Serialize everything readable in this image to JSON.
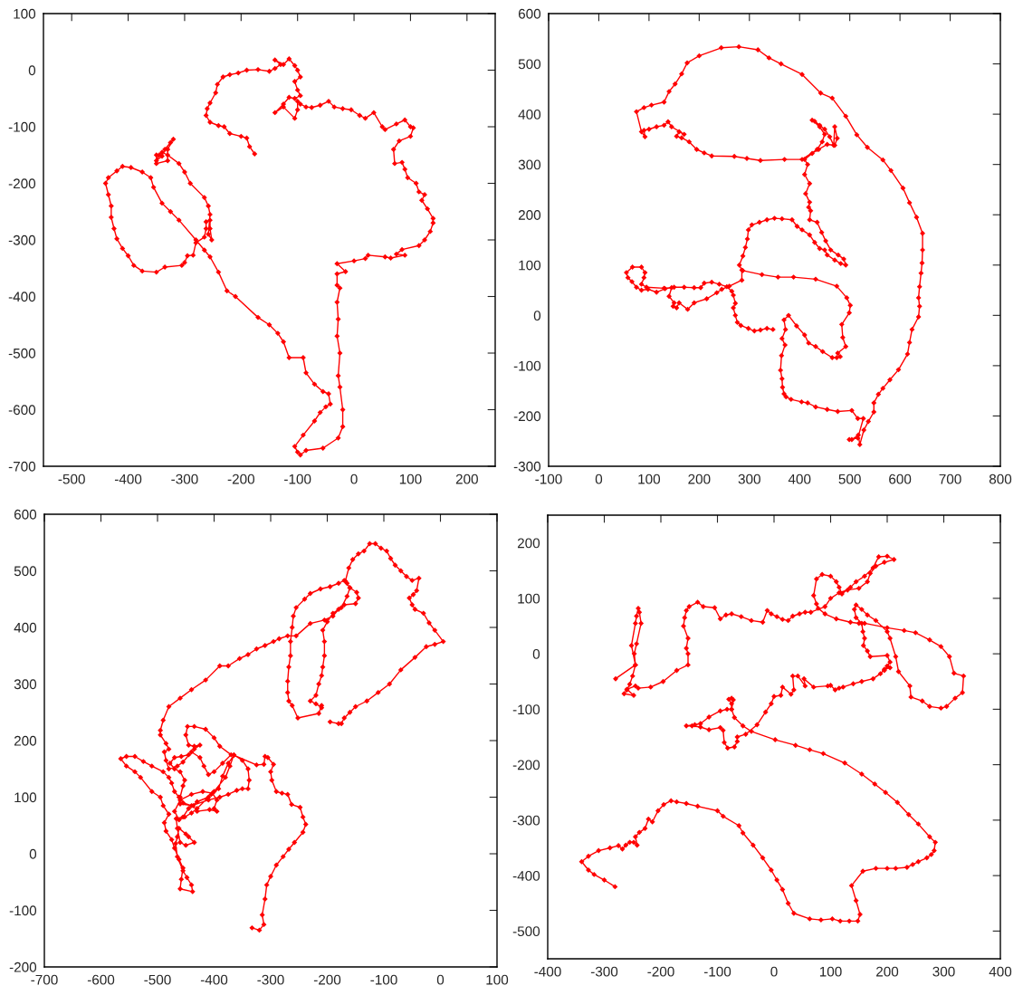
{
  "chart_data": [
    {
      "type": "line",
      "marker": "diamond",
      "grid": false,
      "xlim": [
        -550,
        250
      ],
      "ylim": [
        -700,
        100
      ],
      "xticks": [
        -500,
        -400,
        -300,
        -200,
        -100,
        0,
        100,
        200
      ],
      "yticks": [
        -700,
        -600,
        -500,
        -400,
        -300,
        -200,
        -100,
        0,
        100
      ],
      "series": [
        {
          "color": "#ff0000",
          "x": [
            -176,
            -185,
            -190,
            -200,
            -220,
            -230,
            -240,
            -255,
            -262,
            -260,
            -255,
            -245,
            -242,
            -232,
            -220,
            -205,
            -190,
            -170,
            -150,
            -140,
            -130,
            -140,
            -125,
            -115,
            -105,
            -100,
            -95,
            -105,
            -100,
            -95,
            -105,
            -115,
            -125,
            -140,
            -125,
            -105,
            -100,
            -100,
            -95,
            -85,
            -75,
            -60,
            -45,
            -35,
            -20,
            -5,
            10,
            20,
            35,
            50,
            55,
            75,
            90,
            100,
            105,
            100,
            80,
            70,
            72,
            85,
            90,
            95,
            110,
            115,
            125,
            120,
            130,
            140,
            140,
            135,
            125,
            115,
            85,
            75,
            90,
            65,
            55,
            25,
            20,
            0,
            -30,
            -15,
            -30,
            -30,
            -25,
            -30,
            -28,
            -30,
            -25,
            -28,
            -25,
            -20,
            -20,
            -28,
            -55,
            -85,
            -95,
            -100,
            -105,
            -90,
            -70,
            -60,
            -50,
            -42,
            -45,
            -55,
            -70,
            -85,
            -90,
            -115,
            -125,
            -135,
            -150,
            -170,
            -210,
            -225,
            -240,
            -255,
            -265,
            -280,
            -310,
            -325,
            -340,
            -355,
            -360,
            -375,
            -395,
            -410,
            -420,
            -435,
            -440,
            -435,
            -430,
            -430,
            -425,
            -420,
            -410,
            -400,
            -390,
            -375,
            -350,
            -335,
            -305,
            -300,
            -295,
            -285,
            -280,
            -265,
            -262,
            -262,
            -255,
            -255,
            -252,
            -258,
            -255,
            -258,
            -265,
            -290,
            -300,
            -310,
            -330,
            -340,
            -345,
            -350,
            -340,
            -335,
            -325,
            -320,
            -330,
            -330,
            -350,
            -350
          ],
          "values": [
            -148,
            -135,
            -120,
            -117,
            -112,
            -100,
            -98,
            -92,
            -80,
            -68,
            -58,
            -40,
            -25,
            -12,
            -8,
            -5,
            0,
            1,
            -2,
            3,
            10,
            18,
            10,
            20,
            8,
            0,
            -12,
            -20,
            -35,
            -45,
            -50,
            -48,
            -60,
            -75,
            -65,
            -85,
            -70,
            -55,
            -60,
            -65,
            -66,
            -62,
            -55,
            -65,
            -68,
            -70,
            -80,
            -85,
            -75,
            -100,
            -105,
            -95,
            -88,
            -100,
            -102,
            -117,
            -125,
            -140,
            -165,
            -163,
            -175,
            -190,
            -200,
            -215,
            -220,
            -230,
            -245,
            -262,
            -270,
            -285,
            -300,
            -310,
            -317,
            -325,
            -327,
            -332,
            -330,
            -327,
            -333,
            -337,
            -342,
            -356,
            -360,
            -380,
            -385,
            -410,
            -440,
            -470,
            -500,
            -540,
            -560,
            -600,
            -630,
            -650,
            -668,
            -672,
            -680,
            -675,
            -665,
            -645,
            -620,
            -605,
            -595,
            -590,
            -572,
            -568,
            -555,
            -535,
            -508,
            -508,
            -480,
            -465,
            -450,
            -437,
            -400,
            -390,
            -357,
            -330,
            -318,
            -300,
            -265,
            -250,
            -235,
            -207,
            -190,
            -180,
            -172,
            -170,
            -178,
            -190,
            -200,
            -220,
            -240,
            -260,
            -280,
            -298,
            -315,
            -328,
            -345,
            -355,
            -357,
            -348,
            -345,
            -340,
            -328,
            -327,
            -305,
            -295,
            -280,
            -268,
            -265,
            -280,
            -300,
            -290,
            -255,
            -240,
            -225,
            -200,
            -180,
            -165,
            -150,
            -145,
            -150,
            -160,
            -152,
            -140,
            -128,
            -122,
            -140,
            -160,
            -165,
            -150
          ]
        }
      ]
    },
    {
      "type": "line",
      "marker": "diamond",
      "grid": false,
      "xlim": [
        -100,
        800
      ],
      "ylim": [
        -300,
        600
      ],
      "xticks": [
        -100,
        0,
        100,
        200,
        300,
        400,
        500,
        600,
        700,
        800
      ],
      "yticks": [
        -300,
        -200,
        -100,
        0,
        100,
        200,
        300,
        400,
        500,
        600
      ],
      "series": [
        {
          "color": "#ff0000",
          "x": [
            347,
            335,
            322,
            310,
            298,
            283,
            276,
            272,
            268,
            272,
            268,
            265,
            255,
            240,
            225,
            210,
            203,
            190,
            170,
            150,
            132,
            115,
            98,
            85,
            75,
            66,
            58,
            55,
            67,
            85,
            92,
            90,
            85,
            95,
            130,
            145,
            140,
            150,
            148,
            155,
            160,
            177,
            190,
            215,
            235,
            245,
            260,
            285,
            285,
            280,
            287,
            292,
            296,
            298,
            305,
            320,
            335,
            350,
            365,
            385,
            395,
            405,
            420,
            430,
            440,
            450,
            455,
            470,
            482,
            492,
            488,
            477,
            462,
            452,
            444,
            435,
            420,
            422,
            418,
            420,
            412,
            420,
            410,
            416,
            410,
            425,
            438,
            455,
            470,
            475,
            470,
            468,
            460,
            450,
            440,
            430,
            425,
            440,
            450,
            445,
            435,
            405,
            370,
            322,
            295,
            270,
            225,
            210,
            195,
            180,
            165,
            155,
            160,
            170,
            145,
            138,
            130,
            115,
            100,
            90,
            92,
            85,
            75,
            90,
            105,
            130,
            140,
            152,
            165,
            176,
            200,
            244,
            279,
            317,
            339,
            363,
            405,
            442,
            465,
            492,
            514,
            535,
            566,
            582,
            606,
            619,
            633,
            645,
            645,
            644,
            642,
            639,
            637,
            639,
            637,
            624,
            619,
            615,
            597,
            580,
            566,
            557,
            548,
            548,
            537,
            528,
            520,
            517,
            504,
            499,
            516,
            527,
            516,
            504,
            476,
            455,
            432,
            416,
            404,
            383,
            373,
            369,
            366,
            365,
            362,
            364,
            371,
            365,
            372,
            369,
            378,
            394,
            410,
            418,
            432,
            446,
            465,
            474,
            481,
            476,
            492,
            486,
            484,
            499,
            501,
            494,
            474,
            432,
            388,
            357,
            325,
            287
          ],
          "values": [
            -28,
            -26,
            -29,
            -31,
            -26,
            -20,
            -14,
            0,
            15,
            24,
            40,
            48,
            57,
            62,
            66,
            64,
            55,
            55,
            56,
            56,
            53,
            46,
            52,
            50,
            56,
            67,
            75,
            85,
            96,
            96,
            85,
            75,
            62,
            56,
            54,
            55,
            38,
            25,
            18,
            15,
            25,
            12,
            25,
            33,
            45,
            52,
            58,
            70,
            90,
            100,
            118,
            135,
            152,
            170,
            180,
            185,
            190,
            193,
            192,
            190,
            177,
            170,
            160,
            145,
            133,
            130,
            120,
            110,
            103,
            100,
            112,
            120,
            130,
            148,
            165,
            185,
            190,
            208,
            215,
            225,
            242,
            262,
            280,
            300,
            310,
            322,
            330,
            340,
            338,
            352,
            375,
            338,
            355,
            370,
            378,
            386,
            388,
            375,
            360,
            345,
            330,
            310,
            310,
            308,
            312,
            316,
            317,
            323,
            330,
            345,
            353,
            356,
            365,
            360,
            375,
            385,
            378,
            375,
            370,
            368,
            355,
            365,
            405,
            413,
            418,
            424,
            445,
            460,
            480,
            502,
            516,
            532,
            534,
            528,
            512,
            500,
            479,
            442,
            432,
            396,
            359,
            334,
            309,
            288,
            253,
            224,
            195,
            163,
            130,
            104,
            84,
            57,
            35,
            18,
            -3,
            -28,
            -54,
            -77,
            -108,
            -128,
            -145,
            -157,
            -174,
            -192,
            -211,
            -228,
            -257,
            -238,
            -247,
            -247,
            -244,
            -205,
            -205,
            -189,
            -191,
            -187,
            -182,
            -174,
            -172,
            -167,
            -162,
            -156,
            -143,
            -126,
            -109,
            -80,
            -59,
            -46,
            -28,
            -9,
            0,
            -21,
            -39,
            -55,
            -62,
            -72,
            -84,
            -84,
            -82,
            -75,
            -62,
            -44,
            -18,
            5,
            20,
            35,
            58,
            72,
            76,
            76,
            81,
            89
          ]
        }
      ]
    },
    {
      "type": "line",
      "marker": "diamond",
      "grid": false,
      "xlim": [
        -700,
        100
      ],
      "ylim": [
        -200,
        600
      ],
      "xticks": [
        -700,
        -600,
        -500,
        -400,
        -300,
        -200,
        -100,
        0,
        100
      ],
      "yticks": [
        -200,
        -100,
        0,
        100,
        200,
        300,
        400,
        500,
        600
      ],
      "series": [
        {
          "color": "#ff0000",
          "x": [
            -333,
            -320,
            -312,
            -315,
            -310,
            -307,
            -300,
            -290,
            -278,
            -268,
            -258,
            -243,
            -238,
            -243,
            -248,
            -263,
            -270,
            -280,
            -290,
            -298,
            -300,
            -295,
            -305,
            -310,
            -312,
            -325,
            -365,
            -375,
            -385,
            -392,
            -405,
            -430,
            -440,
            -452,
            -462,
            -470,
            -460,
            -440,
            -420,
            -403,
            -395,
            -400,
            -395,
            -408,
            -430,
            -437,
            -460,
            -462,
            -470,
            -475,
            -480,
            -490,
            -510,
            -525,
            -540,
            -555,
            -565,
            -555,
            -540,
            -530,
            -510,
            -495,
            -490,
            -480,
            -488,
            -485,
            -475,
            -470,
            -462,
            -455,
            -458,
            -460,
            -438,
            -440,
            -448,
            -455,
            -465,
            -468,
            -465,
            -462,
            -450,
            -445,
            -435,
            -450,
            -460,
            -465,
            -467,
            -455,
            -445,
            -430,
            -410,
            -400,
            -380,
            -372,
            -365,
            -350,
            -340,
            -338,
            -340,
            -350,
            -360,
            -375,
            -390,
            -410,
            -440,
            -455,
            -460,
            -455,
            -452,
            -460,
            -470,
            -478,
            -470,
            -458,
            -445,
            -435,
            -425,
            -435,
            -445,
            -450,
            -447,
            -435,
            -415,
            -400,
            -390,
            -370,
            -385,
            -400,
            -410,
            -418,
            -425,
            -440,
            -455,
            -465,
            -480,
            -485,
            -488,
            -480,
            -485,
            -495,
            -495,
            -490,
            -480,
            -460,
            -440,
            -415,
            -390,
            -375,
            -355,
            -340,
            -325,
            -310,
            -295,
            -285,
            -270,
            -255,
            -230,
            -205,
            -190,
            -180,
            -170,
            -150,
            -145,
            -148,
            -160,
            -165,
            -170,
            -180,
            -195,
            -212,
            -230,
            -240,
            -255,
            -260,
            -262,
            -265,
            -265,
            -268,
            -270,
            -270,
            -268,
            -262,
            -252,
            -215,
            -210,
            -210,
            -220,
            -230,
            -220,
            -215,
            -210,
            -208,
            -205,
            -205,
            -208,
            -200,
            -190,
            -175,
            -165,
            -160,
            -168,
            -162,
            -155,
            -145,
            -135,
            -125,
            -115,
            -105,
            -95,
            -88,
            -80,
            -70,
            -60,
            -50,
            -38,
            -42,
            -48,
            -55,
            -50,
            -45,
            -30,
            -20,
            -10,
            5,
            -10,
            -25,
            -45,
            -70,
            -90,
            -110,
            -130,
            -150,
            -160,
            -170,
            -175,
            -180,
            -195
          ],
          "values": [
            -131,
            -135,
            -125,
            -108,
            -80,
            -55,
            -40,
            -20,
            -5,
            8,
            20,
            38,
            52,
            65,
            82,
            87,
            105,
            107,
            110,
            130,
            145,
            158,
            170,
            172,
            158,
            157,
            174,
            160,
            137,
            115,
            105,
            80,
            72,
            65,
            60,
            75,
            95,
            105,
            110,
            107,
            95,
            80,
            75,
            78,
            75,
            85,
            88,
            100,
            110,
            125,
            135,
            145,
            155,
            163,
            172,
            172,
            168,
            155,
            145,
            135,
            110,
            100,
            85,
            70,
            55,
            40,
            25,
            10,
            -10,
            -25,
            -45,
            -62,
            -67,
            -55,
            -42,
            -30,
            -5,
            18,
            30,
            45,
            35,
            30,
            20,
            15,
            20,
            45,
            62,
            65,
            80,
            92,
            100,
            110,
            135,
            155,
            175,
            165,
            150,
            130,
            115,
            115,
            112,
            105,
            100,
            95,
            85,
            90,
            100,
            120,
            130,
            145,
            150,
            160,
            170,
            172,
            175,
            185,
            192,
            190,
            192,
            210,
            225,
            225,
            220,
            205,
            190,
            175,
            160,
            145,
            140,
            155,
            170,
            180,
            162,
            155,
            150,
            165,
            180,
            185,
            195,
            210,
            218,
            236,
            260,
            275,
            290,
            307,
            332,
            332,
            345,
            352,
            362,
            368,
            375,
            380,
            385,
            385,
            407,
            413,
            420,
            432,
            440,
            442,
            452,
            462,
            470,
            478,
            483,
            478,
            472,
            468,
            460,
            450,
            435,
            420,
            400,
            375,
            350,
            330,
            305,
            285,
            270,
            262,
            240,
            248,
            262,
            258,
            265,
            270,
            280,
            300,
            315,
            330,
            350,
            375,
            395,
            410,
            425,
            435,
            455,
            470,
            482,
            505,
            520,
            530,
            535,
            548,
            548,
            540,
            535,
            522,
            510,
            500,
            490,
            483,
            487,
            465,
            458,
            452,
            440,
            432,
            425,
            408,
            395,
            375,
            370,
            366,
            347,
            325,
            300,
            285,
            270,
            260,
            250,
            240,
            230,
            230,
            233
          ]
        }
      ]
    },
    {
      "type": "line",
      "marker": "diamond",
      "grid": false,
      "xlim": [
        -400,
        400
      ],
      "ylim": [
        -550,
        250
      ],
      "xticks": [
        -400,
        -300,
        -200,
        -100,
        0,
        100,
        200,
        300,
        400
      ],
      "yticks": [
        -500,
        -400,
        -300,
        -200,
        -100,
        0,
        100,
        200
      ],
      "series": [
        {
          "color": "#ff0000",
          "x": [
            -281,
            -300,
            -318,
            -328,
            -340,
            -328,
            -310,
            -290,
            -275,
            -268,
            -262,
            -255,
            -248,
            -242,
            -245,
            -238,
            -228,
            -222,
            -215,
            -205,
            -195,
            -182,
            -172,
            -155,
            -135,
            -100,
            -90,
            -62,
            -55,
            -37,
            -20,
            -5,
            5,
            15,
            25,
            35,
            63,
            83,
            103,
            117,
            133,
            148,
            152,
            145,
            137,
            157,
            180,
            200,
            215,
            235,
            245,
            255,
            270,
            278,
            283,
            285,
            275,
            255,
            238,
            218,
            197,
            178,
            155,
            125,
            87,
            63,
            38,
            2,
            -40,
            -55,
            -70,
            -75,
            -72,
            -75,
            -80,
            -75,
            -75,
            -83,
            -95,
            -115,
            -130,
            -140,
            -155,
            -145,
            -130,
            -115,
            -95,
            -90,
            -88,
            -82,
            -70,
            -65,
            -65,
            -50,
            -30,
            -15,
            -5,
            0,
            12,
            15,
            30,
            35,
            33,
            42,
            55,
            53,
            70,
            95,
            100,
            108,
            115,
            122,
            140,
            155,
            175,
            188,
            195,
            205,
            200,
            195,
            205,
            200,
            170,
            165,
            158,
            160,
            157,
            155,
            145,
            142,
            145,
            155,
            165,
            180,
            200,
            205,
            215,
            220,
            240,
            242,
            262,
            275,
            295,
            305,
            320,
            333,
            335,
            318,
            310,
            295,
            275,
            250,
            230,
            200,
            160,
            150,
            135,
            110,
            90,
            78,
            75,
            70,
            75,
            85,
            100,
            110,
            115,
            120,
            135,
            145,
            160,
            175,
            185,
            200,
            212,
            195,
            180,
            170,
            165,
            150,
            130,
            115,
            100,
            90,
            65,
            55,
            45,
            33,
            25,
            15,
            5,
            -5,
            -12,
            -20,
            -40,
            -58,
            -75,
            -85,
            -95,
            -105,
            -125,
            -135,
            -150,
            -155,
            -158,
            -160,
            -152,
            -155,
            -152,
            -152,
            -172,
            -196,
            -218,
            -240,
            -245,
            -260,
            -248,
            -265,
            -260,
            -255,
            -250,
            -245,
            -247,
            -243,
            -235,
            -238,
            -240,
            -243,
            -245,
            -252,
            -245,
            -280
          ],
          "values": [
            -420,
            -408,
            -398,
            -390,
            -375,
            -365,
            -355,
            -350,
            -346,
            -352,
            -345,
            -340,
            -340,
            -345,
            -330,
            -322,
            -315,
            -298,
            -303,
            -283,
            -272,
            -265,
            -267,
            -270,
            -275,
            -283,
            -293,
            -310,
            -323,
            -345,
            -368,
            -390,
            -408,
            -425,
            -450,
            -468,
            -478,
            -480,
            -478,
            -482,
            -482,
            -482,
            -470,
            -445,
            -418,
            -392,
            -387,
            -387,
            -387,
            -385,
            -380,
            -375,
            -368,
            -362,
            -355,
            -340,
            -330,
            -307,
            -290,
            -268,
            -250,
            -235,
            -217,
            -197,
            -180,
            -173,
            -165,
            -155,
            -140,
            -130,
            -115,
            -100,
            -83,
            -80,
            -82,
            -90,
            -100,
            -100,
            -103,
            -114,
            -126,
            -128,
            -130,
            -130,
            -132,
            -137,
            -133,
            -138,
            -160,
            -170,
            -168,
            -158,
            -150,
            -145,
            -128,
            -105,
            -90,
            -77,
            -75,
            -60,
            -73,
            -65,
            -40,
            -40,
            -58,
            -45,
            -60,
            -58,
            -57,
            -65,
            -62,
            -60,
            -54,
            -50,
            -45,
            -36,
            -28,
            -25,
            -22,
            -30,
            -15,
            -3,
            -5,
            5,
            15,
            28,
            40,
            55,
            65,
            80,
            88,
            80,
            70,
            60,
            40,
            28,
            -5,
            -32,
            -58,
            -78,
            -85,
            -95,
            -98,
            -95,
            -80,
            -70,
            -40,
            -35,
            -5,
            13,
            25,
            38,
            42,
            47,
            55,
            55,
            57,
            63,
            72,
            82,
            90,
            105,
            135,
            143,
            140,
            130,
            120,
            108,
            120,
            130,
            140,
            155,
            175,
            176,
            170,
            165,
            158,
            145,
            130,
            118,
            115,
            110,
            100,
            85,
            75,
            75,
            72,
            68,
            60,
            62,
            67,
            72,
            78,
            57,
            60,
            67,
            72,
            70,
            63,
            83,
            85,
            93,
            85,
            78,
            65,
            50,
            28,
            10,
            0,
            -20,
            -30,
            -50,
            -60,
            -62,
            -58,
            -64,
            -75,
            -72,
            -65,
            -55,
            -40,
            -20,
            0,
            18,
            55,
            75,
            82,
            68,
            55,
            15,
            -20,
            -45
          ]
        }
      ]
    }
  ]
}
